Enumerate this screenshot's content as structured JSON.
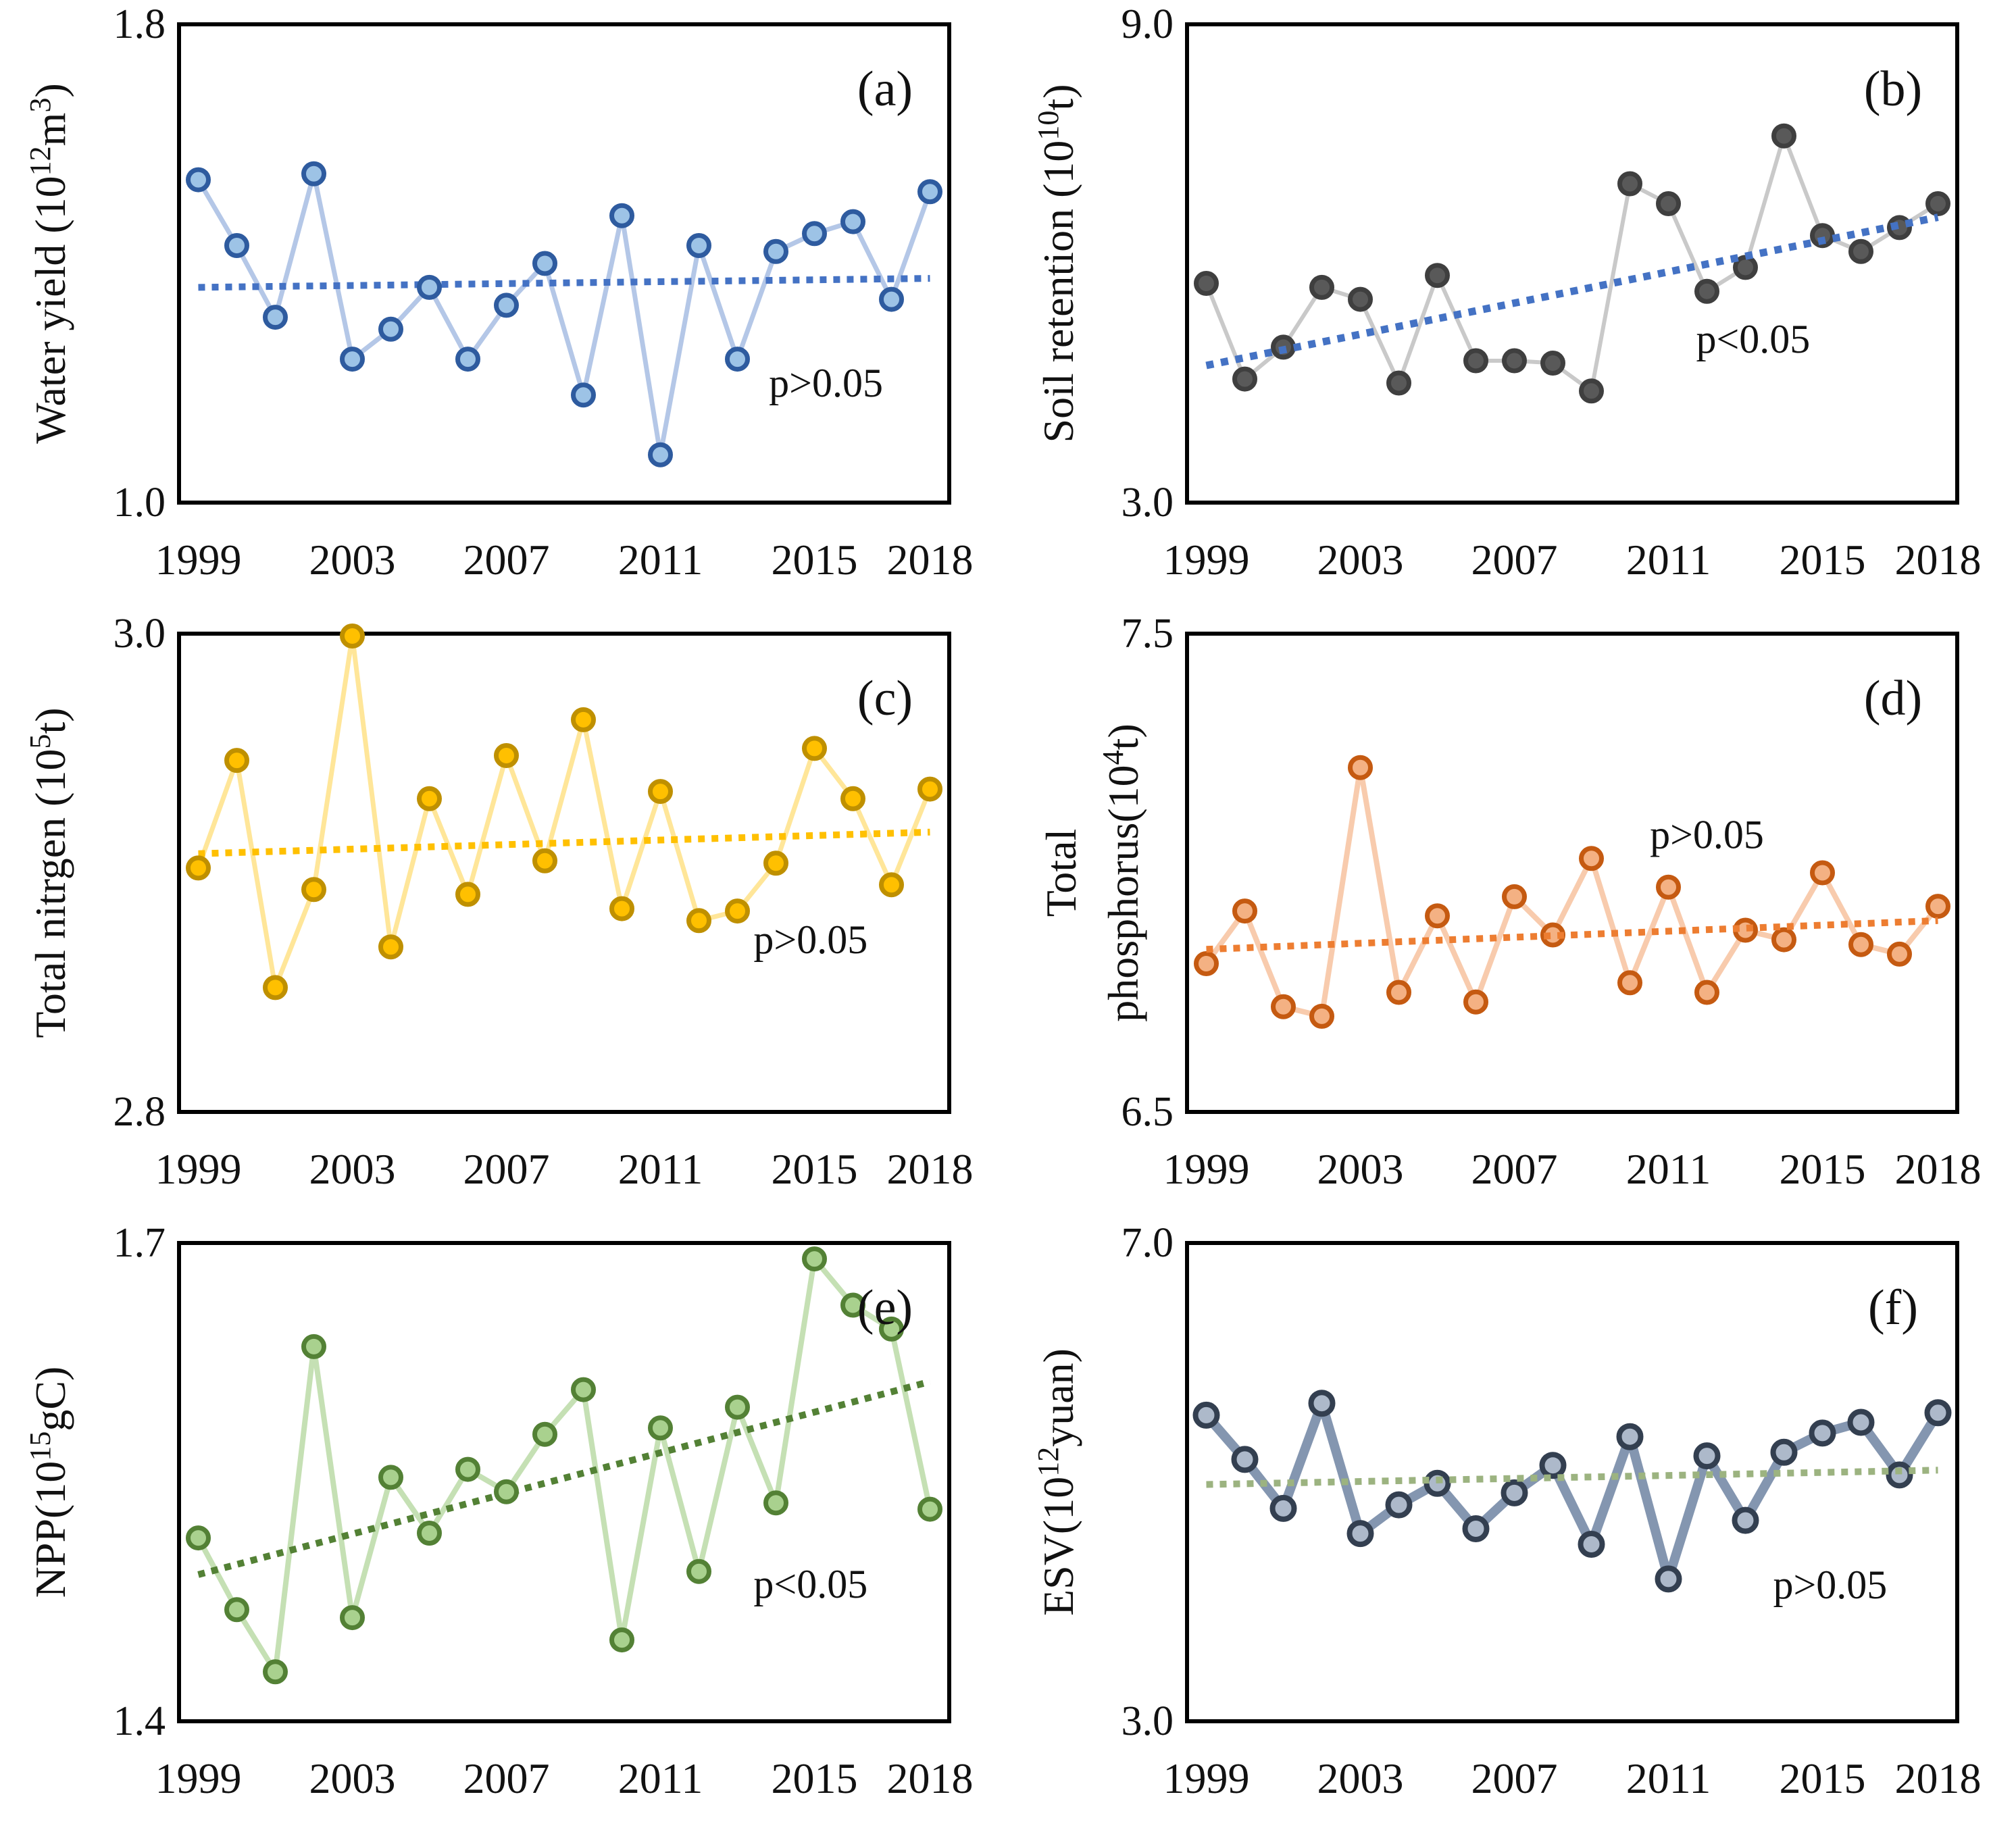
{
  "figure": {
    "background": "#ffffff",
    "frame_color": "#000000",
    "text_color": "#111111"
  },
  "chart_data": {
    "type": "line",
    "layout": "2x3 grid of subplots, shared year axis",
    "x": [
      1999,
      2000,
      2001,
      2002,
      2003,
      2004,
      2005,
      2006,
      2007,
      2008,
      2009,
      2010,
      2011,
      2012,
      2013,
      2014,
      2015,
      2016,
      2017,
      2018
    ],
    "xticks": [
      1999,
      2003,
      2007,
      2011,
      2015,
      2018
    ],
    "xticklabels": [
      "1999",
      "2003",
      "2007",
      "2011",
      "2015",
      "2018"
    ],
    "grid": false,
    "legend": "none",
    "panels": [
      {
        "id": "a",
        "letter": "(a)",
        "ylabel_plain": "Water yield (10^12 m^3)",
        "ylabel_lines": [
          [
            {
              "text": "Water yield (10"
            },
            {
              "text": "12",
              "sup": true
            },
            {
              "text": "m"
            },
            {
              "text": "3",
              "sup": true
            },
            {
              "text": ")"
            }
          ]
        ],
        "ylim": [
          1.0,
          1.8
        ],
        "yticks": [
          {
            "value": 1.8,
            "label": "1.8"
          },
          {
            "value": 1.0,
            "label": "1.0"
          }
        ],
        "values": [
          1.54,
          1.43,
          1.31,
          1.55,
          1.24,
          1.29,
          1.36,
          1.24,
          1.33,
          1.4,
          1.18,
          1.48,
          1.08,
          1.43,
          1.24,
          1.42,
          1.45,
          1.47,
          1.34,
          1.52
        ],
        "trend": {
          "start_value": 1.36,
          "end_value": 1.375,
          "significance": "p>0.05"
        },
        "p_annotation": {
          "text": "p>0.05",
          "year": 2015.3,
          "value": 1.2
        },
        "colors": {
          "line": "#B4C7E7",
          "marker_fill": "#9DC3E6",
          "marker_stroke": "#2E5B9F",
          "trend": "#4472C4"
        },
        "style": {
          "line_width": 7,
          "marker_radius": 15,
          "marker_stroke_width": 7,
          "trend_width": 10,
          "trend_over_markers": false
        }
      },
      {
        "id": "b",
        "letter": "(b)",
        "ylabel_plain": "Soil retention (10^10 t)",
        "ylabel_lines": [
          [
            {
              "text": "Soil retention (10"
            },
            {
              "text": "10",
              "sup": true
            },
            {
              "text": "t)"
            }
          ]
        ],
        "ylim": [
          3.0,
          9.0
        ],
        "yticks": [
          {
            "value": 9.0,
            "label": "9.0"
          },
          {
            "value": 3.0,
            "label": "3.0"
          }
        ],
        "values": [
          5.75,
          4.55,
          4.95,
          5.7,
          5.55,
          4.5,
          5.85,
          4.78,
          4.78,
          4.75,
          4.4,
          7.0,
          6.75,
          5.65,
          5.95,
          7.6,
          6.35,
          6.15,
          6.45,
          6.75
        ],
        "trend": {
          "start_value": 4.72,
          "end_value": 6.58,
          "significance": "p<0.05"
        },
        "p_annotation": {
          "text": "p<0.05",
          "year": 2013.2,
          "value": 5.05
        },
        "colors": {
          "line": "#C9C9C9",
          "marker_fill": "#595959",
          "marker_stroke": "#3F3F3F",
          "trend": "#4472C4"
        },
        "style": {
          "line_width": 6,
          "marker_radius": 15,
          "marker_stroke_width": 7,
          "trend_width": 11,
          "trend_over_markers": true
        }
      },
      {
        "id": "c",
        "letter": "(c)",
        "ylabel_plain": "Total nitrgen (10^5 t)",
        "ylabel_lines": [
          [
            {
              "text": "Total nitrgen (10"
            },
            {
              "text": "5",
              "sup": true
            },
            {
              "text": "t)"
            }
          ]
        ],
        "ylim": [
          2.8,
          3.0
        ],
        "yticks": [
          {
            "value": 3.0,
            "label": "3.0"
          },
          {
            "value": 2.8,
            "label": "2.8"
          }
        ],
        "values": [
          2.902,
          2.947,
          2.852,
          2.893,
          2.999,
          2.869,
          2.931,
          2.891,
          2.949,
          2.905,
          2.964,
          2.885,
          2.934,
          2.88,
          2.884,
          2.904,
          2.952,
          2.931,
          2.895,
          2.935
        ],
        "trend": {
          "start_value": 2.908,
          "end_value": 2.917,
          "significance": "p>0.05"
        },
        "p_annotation": {
          "text": "p>0.05",
          "year": 2014.9,
          "value": 2.872
        },
        "colors": {
          "line": "#FFE699",
          "marker_fill": "#FFC000",
          "marker_stroke": "#BF9000",
          "trend": "#FFC000"
        },
        "style": {
          "line_width": 7,
          "marker_radius": 15,
          "marker_stroke_width": 7,
          "trend_width": 10,
          "trend_over_markers": false
        }
      },
      {
        "id": "d",
        "letter": "(d)",
        "ylabel_plain": "Total phosphorus (10^4 t)",
        "ylabel_lines": [
          [
            {
              "text": "Total"
            }
          ],
          [
            {
              "text": "phosphorus(10"
            },
            {
              "text": "4",
              "sup": true
            },
            {
              "text": "t)"
            }
          ]
        ],
        "ylim": [
          6.5,
          7.5
        ],
        "yticks": [
          {
            "value": 7.5,
            "label": "7.5"
          },
          {
            "value": 6.5,
            "label": "6.5"
          }
        ],
        "values": [
          6.81,
          6.92,
          6.72,
          6.7,
          7.22,
          6.75,
          6.91,
          6.73,
          6.95,
          6.87,
          7.03,
          6.77,
          6.97,
          6.75,
          6.88,
          6.86,
          7.0,
          6.85,
          6.83,
          6.93
        ],
        "trend": {
          "start_value": 6.84,
          "end_value": 6.9,
          "significance": "p>0.05"
        },
        "p_annotation": {
          "text": "p>0.05",
          "year": 2012.0,
          "value": 7.08
        },
        "colors": {
          "line": "#F8CBAD",
          "marker_fill": "#F4B183",
          "marker_stroke": "#C55A11",
          "trend": "#ED7D31"
        },
        "style": {
          "line_width": 8,
          "marker_radius": 15,
          "marker_stroke_width": 7,
          "trend_width": 10,
          "trend_over_markers": true
        }
      },
      {
        "id": "e",
        "letter": "(e)",
        "ylabel_plain": "NPP (10^15 gC)",
        "ylabel_lines": [
          [
            {
              "text": "NPP(10"
            },
            {
              "text": "15",
              "sup": true
            },
            {
              "text": "gC)"
            }
          ]
        ],
        "ylim": [
          1.4,
          1.7
        ],
        "yticks": [
          {
            "value": 1.7,
            "label": "1.7"
          },
          {
            "value": 1.4,
            "label": "1.4"
          }
        ],
        "values": [
          1.515,
          1.47,
          1.431,
          1.635,
          1.465,
          1.553,
          1.518,
          1.558,
          1.544,
          1.58,
          1.608,
          1.451,
          1.584,
          1.494,
          1.597,
          1.537,
          1.69,
          1.661,
          1.646,
          1.533
        ],
        "trend": {
          "start_value": 1.492,
          "end_value": 1.613,
          "significance": "p<0.05"
        },
        "p_annotation": {
          "text": "p<0.05",
          "year": 2014.9,
          "value": 1.486
        },
        "colors": {
          "line": "#C5E0B4",
          "marker_fill": "#A9D18E",
          "marker_stroke": "#538135",
          "trend": "#538135"
        },
        "style": {
          "line_width": 8,
          "marker_radius": 15,
          "marker_stroke_width": 7,
          "trend_width": 10,
          "trend_over_markers": false
        }
      },
      {
        "id": "f",
        "letter": "(f)",
        "ylabel_plain": "ESV (10^12 yuan)",
        "ylabel_lines": [
          [
            {
              "text": "ESV(10"
            },
            {
              "text": "12",
              "sup": true
            },
            {
              "text": "yuan)"
            }
          ]
        ],
        "ylim": [
          3.0,
          7.0
        ],
        "yticks": [
          {
            "value": 7.0,
            "label": "7.0"
          },
          {
            "value": 3.0,
            "label": "3.0"
          }
        ],
        "values": [
          5.56,
          5.19,
          4.78,
          5.66,
          4.57,
          4.81,
          4.99,
          4.61,
          4.91,
          5.14,
          4.48,
          5.38,
          4.19,
          5.22,
          4.68,
          5.25,
          5.41,
          5.5,
          5.06,
          5.58
        ],
        "trend": {
          "start_value": 4.98,
          "end_value": 5.1,
          "significance": "p>0.05"
        },
        "p_annotation": {
          "text": "p>0.05",
          "year": 2015.2,
          "value": 4.14
        },
        "colors": {
          "line": "#8496B0",
          "marker_fill": "#ADB9CA",
          "marker_stroke": "#333F50",
          "trend": "#9CB380"
        },
        "style": {
          "line_width": 14,
          "marker_radius": 16,
          "marker_stroke_width": 8,
          "trend_width": 10,
          "trend_over_markers": true
        }
      }
    ]
  }
}
